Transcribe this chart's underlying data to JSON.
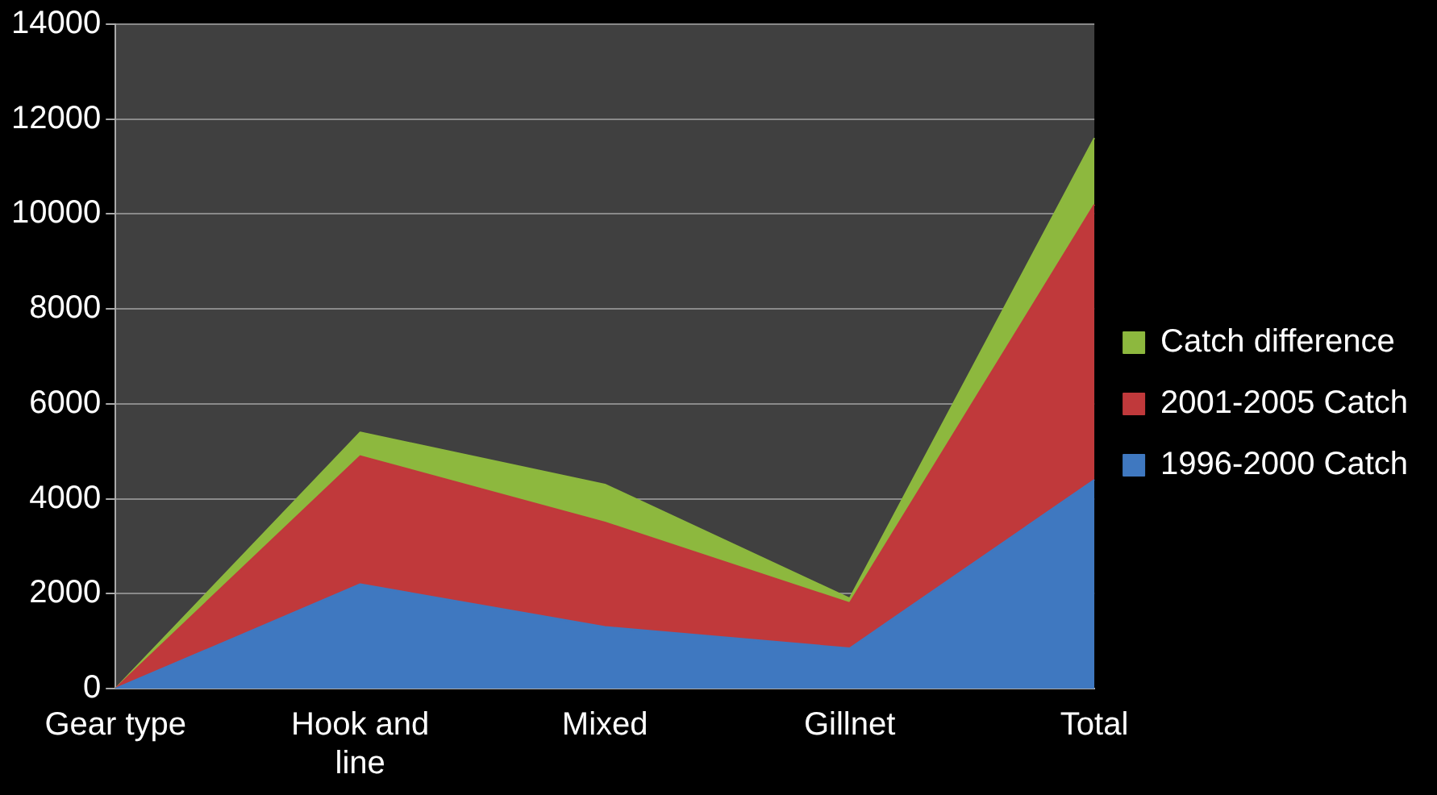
{
  "chart_data": {
    "type": "area",
    "stacked": true,
    "categories": [
      "Gear type",
      "Hook and line",
      "Mixed",
      "Gillnet",
      "Total"
    ],
    "series": [
      {
        "name": "1996-2000 Catch",
        "color": "#3f78c0",
        "values": [
          0,
          2200,
          1300,
          850,
          4400
        ]
      },
      {
        "name": "2001-2005 Catch",
        "color": "#c0393b",
        "values": [
          0,
          2700,
          2200,
          950,
          5800
        ]
      },
      {
        "name": "Catch difference",
        "color": "#8db83e",
        "values": [
          0,
          500,
          800,
          100,
          1400
        ]
      }
    ],
    "ylim": [
      0,
      14000
    ],
    "yticks": [
      0,
      2000,
      4000,
      6000,
      8000,
      10000,
      12000,
      14000
    ],
    "grid": "y",
    "legend": "right"
  }
}
